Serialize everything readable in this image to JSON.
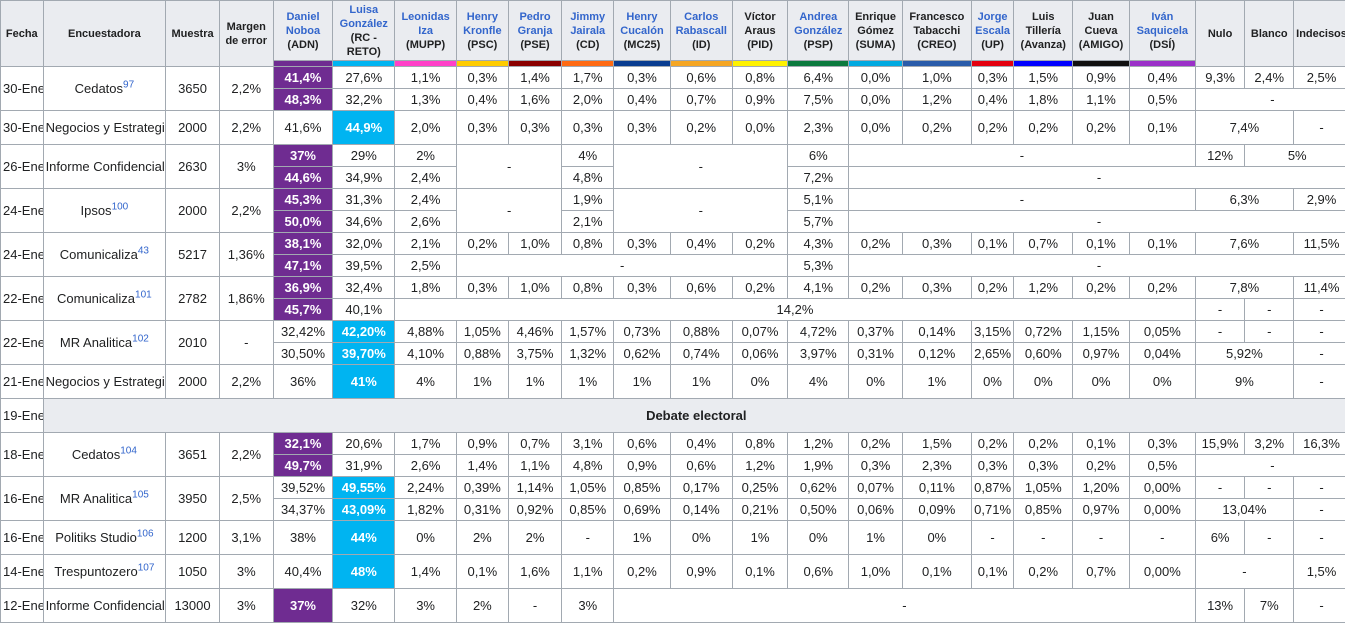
{
  "headers": {
    "fecha": "Fecha",
    "encuestadora": "Encuestadora",
    "muestra": "Muestra",
    "margen": "Margen de error",
    "candidates": [
      {
        "name": "Daniel Noboa",
        "party": "(ADN)",
        "color": "#6f2c91"
      },
      {
        "name": "Luisa González",
        "party": "(RC - RETO)",
        "color": "#00b4f1"
      },
      {
        "name": "Leonidas Iza",
        "party": "(MUPP)",
        "color": "#ff40c8"
      },
      {
        "name": "Henry Kronfle",
        "party": "(PSC)",
        "color": "#ffcc00"
      },
      {
        "name": "Pedro Granja",
        "party": "(PSE)",
        "color": "#8b0000"
      },
      {
        "name": "Jimmy Jairala",
        "party": "(CD)",
        "color": "#ff6a13"
      },
      {
        "name": "Henry Cucalón",
        "party": "(MC25)",
        "color": "#0a3d91"
      },
      {
        "name": "Carlos Rabascall",
        "party": "(ID)",
        "color": "#f5a623"
      },
      {
        "name": "Víctor Araus",
        "party": "(PID)",
        "color": "#fff200"
      },
      {
        "name": "Andrea González",
        "party": "(PSP)",
        "color": "#0b7a3e"
      },
      {
        "name": "Enrique Gómez",
        "party": "(SUMA)",
        "color": "#00a9e0"
      },
      {
        "name": "Francesco Tabacchi",
        "party": "(CREO)",
        "color": "#2a5caa"
      },
      {
        "name": "Jorge Escala",
        "party": "(UP)",
        "color": "#e3000f"
      },
      {
        "name": "Luis Tillería",
        "party": "(Avanza)",
        "color": "#0000ff"
      },
      {
        "name": "Juan Cueva",
        "party": "(AMIGO)",
        "color": "#111111"
      },
      {
        "name": "Iván Saquicela",
        "party": "(DSÍ)",
        "color": "#9b30c8"
      }
    ],
    "nulo": "Nulo",
    "blanco": "Blanco",
    "indecisos": "Indecisos"
  },
  "debate_label": "Debate electoral",
  "rows": {
    "r1": {
      "date": "30-Ene",
      "pollster": "Cedatos",
      "ref": "97",
      "sample": "3650",
      "margin": "2,2%",
      "a": [
        "41,4%",
        "27,6%",
        "1,1%",
        "0,3%",
        "1,4%",
        "1,7%",
        "0,3%",
        "0,6%",
        "0,8%",
        "6,4%",
        "0,0%",
        "1,0%",
        "0,3%",
        "1,5%",
        "0,9%",
        "0,4%",
        "9,3%",
        "2,4%",
        "2,5%"
      ],
      "b": [
        "48,3%",
        "32,2%",
        "1,3%",
        "0,4%",
        "1,6%",
        "2,0%",
        "0,4%",
        "0,7%",
        "0,9%",
        "7,5%",
        "0,0%",
        "1,2%",
        "0,4%",
        "1,8%",
        "1,1%",
        "0,5%",
        "-"
      ]
    },
    "r2": {
      "date": "30-Ene",
      "pollster": "Negocios y Estrategias",
      "ref": "98",
      "sample": "2000",
      "margin": "2,2%",
      "v": [
        "41,6%",
        "44,9%",
        "2,0%",
        "0,3%",
        "0,3%",
        "0,3%",
        "0,3%",
        "0,2%",
        "0,0%",
        "2,3%",
        "0,0%",
        "0,2%",
        "0,2%",
        "0,2%",
        "0,2%",
        "0,1%",
        "7,4%",
        "-"
      ]
    },
    "r3": {
      "date": "26-Ene",
      "pollster": "Informe Confidencial",
      "ref": "99",
      "sample": "2630",
      "margin": "3%",
      "a": [
        "37%",
        "29%",
        "2%",
        "-",
        "4%",
        "-",
        "6%",
        "-",
        "12%",
        "5%"
      ],
      "b": [
        "44,6%",
        "34,9%",
        "2,4%",
        "4,8%",
        "7,2%",
        "-"
      ]
    },
    "r4": {
      "date": "24-Ene",
      "pollster": "Ipsos",
      "ref": "100",
      "sample": "2000",
      "margin": "2,2%",
      "a": [
        "45,3%",
        "31,3%",
        "2,4%",
        "-",
        "1,9%",
        "-",
        "5,1%",
        "-",
        "6,3%",
        "2,9%"
      ],
      "b": [
        "50,0%",
        "34,6%",
        "2,6%",
        "2,1%",
        "5,7%",
        "-"
      ]
    },
    "r5": {
      "date": "24-Ene",
      "pollster": "Comunicaliza",
      "ref": "43",
      "sample": "5217",
      "margin": "1,36%",
      "a": [
        "38,1%",
        "32,0%",
        "2,1%",
        "0,2%",
        "1,0%",
        "0,8%",
        "0,3%",
        "0,4%",
        "0,2%",
        "4,3%",
        "0,2%",
        "0,3%",
        "0,1%",
        "0,7%",
        "0,1%",
        "0,1%",
        "7,6%",
        "11,5%"
      ],
      "b": [
        "47,1%",
        "39,5%",
        "2,5%",
        "-",
        "5,3%",
        "-"
      ]
    },
    "r6": {
      "date": "22-Ene",
      "pollster": "Comunicaliza",
      "ref": "101",
      "sample": "2782",
      "margin": "1,86%",
      "a": [
        "36,9%",
        "32,4%",
        "1,8%",
        "0,3%",
        "1,0%",
        "0,8%",
        "0,3%",
        "0,6%",
        "0,2%",
        "4,1%",
        "0,2%",
        "0,3%",
        "0,2%",
        "1,2%",
        "0,2%",
        "0,2%",
        "7,8%",
        "11,4%"
      ],
      "b": [
        "45,7%",
        "40,1%",
        "14,2%",
        "-",
        "-",
        "-"
      ]
    },
    "r7": {
      "date": "22-Ene",
      "pollster": "MR Analitica",
      "ref": "102",
      "sample": "2010",
      "margin": "-",
      "a": [
        "32,42%",
        "42,20%",
        "4,88%",
        "1,05%",
        "4,46%",
        "1,57%",
        "0,73%",
        "0,88%",
        "0,07%",
        "4,72%",
        "0,37%",
        "0,14%",
        "3,15%",
        "0,72%",
        "1,15%",
        "0,05%",
        "-",
        "-",
        "-"
      ],
      "b": [
        "30,50%",
        "39,70%",
        "4,10%",
        "0,88%",
        "3,75%",
        "1,32%",
        "0,62%",
        "0,74%",
        "0,06%",
        "3,97%",
        "0,31%",
        "0,12%",
        "2,65%",
        "0,60%",
        "0,97%",
        "0,04%",
        "5,92%",
        "-"
      ]
    },
    "r8": {
      "date": "21-Ene",
      "pollster": "Negocios y Estrategias",
      "ref": "103",
      "sample": "2000",
      "margin": "2,2%",
      "v": [
        "36%",
        "41%",
        "4%",
        "1%",
        "1%",
        "1%",
        "1%",
        "1%",
        "0%",
        "4%",
        "0%",
        "1%",
        "0%",
        "0%",
        "0%",
        "0%",
        "9%",
        "-"
      ]
    },
    "r9": {
      "date": "19-Ene"
    },
    "r10": {
      "date": "18-Ene",
      "pollster": "Cedatos",
      "ref": "104",
      "sample": "3651",
      "margin": "2,2%",
      "a": [
        "32,1%",
        "20,6%",
        "1,7%",
        "0,9%",
        "0,7%",
        "3,1%",
        "0,6%",
        "0,4%",
        "0,8%",
        "1,2%",
        "0,2%",
        "1,5%",
        "0,2%",
        "0,2%",
        "0,1%",
        "0,3%",
        "15,9%",
        "3,2%",
        "16,3%"
      ],
      "b": [
        "49,7%",
        "31,9%",
        "2,6%",
        "1,4%",
        "1,1%",
        "4,8%",
        "0,9%",
        "0,6%",
        "1,2%",
        "1,9%",
        "0,3%",
        "2,3%",
        "0,3%",
        "0,3%",
        "0,2%",
        "0,5%",
        "-"
      ]
    },
    "r11": {
      "date": "16-Ene",
      "pollster": "MR Analitica",
      "ref": "105",
      "sample": "3950",
      "margin": "2,5%",
      "a": [
        "39,52%",
        "49,55%",
        "2,24%",
        "0,39%",
        "1,14%",
        "1,05%",
        "0,85%",
        "0,17%",
        "0,25%",
        "0,62%",
        "0,07%",
        "0,11%",
        "0,87%",
        "1,05%",
        "1,20%",
        "0,00%",
        "-",
        "-",
        "-"
      ],
      "b": [
        "34,37%",
        "43,09%",
        "1,82%",
        "0,31%",
        "0,92%",
        "0,85%",
        "0,69%",
        "0,14%",
        "0,21%",
        "0,50%",
        "0,06%",
        "0,09%",
        "0,71%",
        "0,85%",
        "0,97%",
        "0,00%",
        "13,04%",
        "-"
      ]
    },
    "r12": {
      "date": "16-Ene",
      "pollster": "Politiks Studio",
      "ref": "106",
      "sample": "1200",
      "margin": "3,1%",
      "v": [
        "38%",
        "44%",
        "0%",
        "2%",
        "2%",
        "-",
        "1%",
        "0%",
        "1%",
        "0%",
        "1%",
        "0%",
        "-",
        "-",
        "-",
        "-",
        "6%",
        "-",
        "-"
      ]
    },
    "r13": {
      "date": "14-Ene",
      "pollster": "Trespuntozero",
      "ref": "107",
      "sample": "1050",
      "margin": "3%",
      "v": [
        "40,4%",
        "48%",
        "1,4%",
        "0,1%",
        "1,6%",
        "1,1%",
        "0,2%",
        "0,9%",
        "0,1%",
        "0,6%",
        "1,0%",
        "0,1%",
        "0,1%",
        "0,2%",
        "0,7%",
        "0,00%",
        "-",
        "1,5%"
      ]
    },
    "r14": {
      "date": "12-Ene",
      "pollster": "Informe Confidencial",
      "ref": "108",
      "sample": "13000",
      "margin": "3%",
      "v": [
        "37%",
        "32%",
        "3%",
        "2%",
        "-",
        "3%",
        "-",
        "13%",
        "7%",
        "-"
      ]
    }
  }
}
